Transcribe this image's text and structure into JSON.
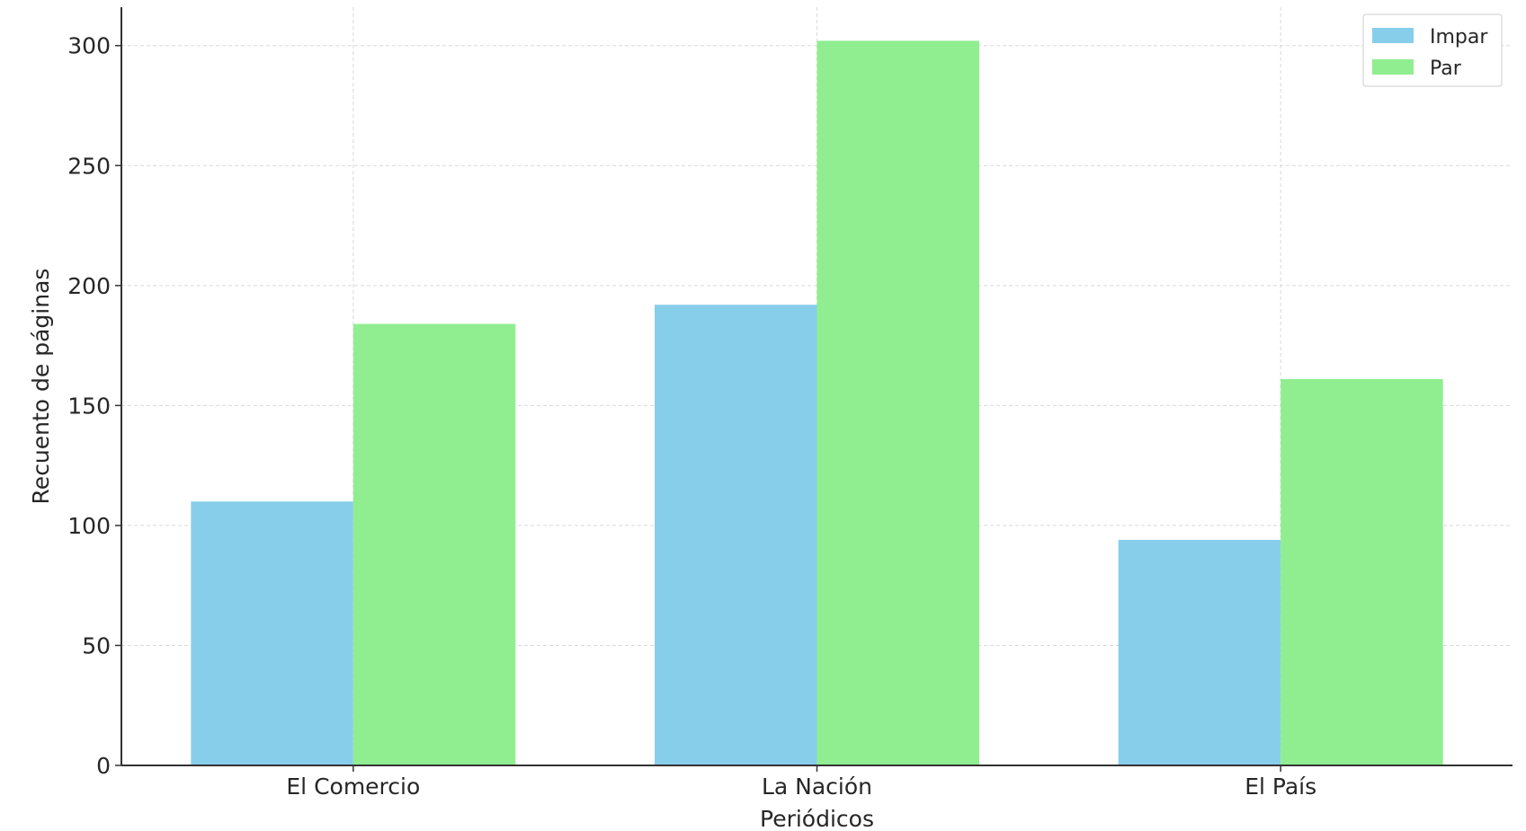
{
  "chart_data": {
    "type": "bar",
    "categories": [
      "El Comercio",
      "La Nación",
      "El País"
    ],
    "series": [
      {
        "name": "Impar",
        "values": [
          110,
          192,
          94
        ],
        "color": "#87ceeb"
      },
      {
        "name": "Par",
        "values": [
          184,
          302,
          161
        ],
        "color": "#90ee90"
      }
    ],
    "xlabel": "Periódicos",
    "ylabel": "Recuento de páginas",
    "ylim": [
      0,
      316
    ],
    "yticks": [
      0,
      50,
      100,
      150,
      200,
      250,
      300
    ],
    "grid": true,
    "legend_position": "top-right"
  }
}
